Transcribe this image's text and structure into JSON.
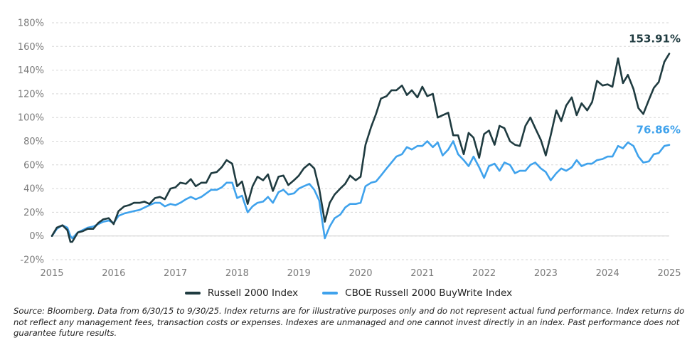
{
  "chart_data": {
    "type": "line",
    "title": "",
    "xlabel": "",
    "ylabel": "",
    "ylim": [
      -20,
      180
    ],
    "xlim": [
      2015.0,
      2025.0
    ],
    "yticks": [
      -20,
      0,
      20,
      40,
      60,
      80,
      100,
      120,
      140,
      160,
      180
    ],
    "ytick_labels": [
      "-20%",
      "0%",
      "20%",
      "40%",
      "60%",
      "80%",
      "100%",
      "120%",
      "140%",
      "160%",
      "180%"
    ],
    "xtick_labels": [
      "2015",
      "2016",
      "2017",
      "2018",
      "2019",
      "2020",
      "2021",
      "2022",
      "2023",
      "2024",
      "2025"
    ],
    "grid": "horizontal dashed",
    "legend_position": "bottom-center",
    "series": [
      {
        "name": "Russell 2000 Index",
        "color": "#1f3b40",
        "end_label": "153.91%",
        "x": [
          2015.0,
          2015.08,
          2015.17,
          2015.25,
          2015.3,
          2015.33,
          2015.42,
          2015.5,
          2015.58,
          2015.67,
          2015.75,
          2015.83,
          2015.92,
          2016.0,
          2016.08,
          2016.17,
          2016.25,
          2016.33,
          2016.42,
          2016.5,
          2016.58,
          2016.67,
          2016.75,
          2016.83,
          2016.92,
          2017.0,
          2017.08,
          2017.17,
          2017.25,
          2017.33,
          2017.42,
          2017.5,
          2017.58,
          2017.67,
          2017.75,
          2017.83,
          2017.92,
          2018.0,
          2018.08,
          2018.17,
          2018.25,
          2018.33,
          2018.42,
          2018.5,
          2018.58,
          2018.67,
          2018.75,
          2018.83,
          2018.92,
          2019.0,
          2019.08,
          2019.17,
          2019.25,
          2019.33,
          2019.42,
          2019.5,
          2019.58,
          2019.67,
          2019.75,
          2019.83,
          2019.92,
          2020.0,
          2020.08,
          2020.17,
          2020.25,
          2020.33,
          2020.42,
          2020.5,
          2020.58,
          2020.67,
          2020.75,
          2020.83,
          2020.92,
          2021.0,
          2021.08,
          2021.17,
          2021.25,
          2021.33,
          2021.42,
          2021.5,
          2021.58,
          2021.67,
          2021.75,
          2021.83,
          2021.92,
          2022.0,
          2022.08,
          2022.17,
          2022.25,
          2022.33,
          2022.42,
          2022.5,
          2022.58,
          2022.67,
          2022.75,
          2022.83,
          2022.92,
          2023.0,
          2023.08,
          2023.17,
          2023.25,
          2023.33,
          2023.42,
          2023.5,
          2023.58,
          2023.67,
          2023.75,
          2023.83,
          2023.92,
          2024.0,
          2024.08,
          2024.17,
          2024.25,
          2024.33,
          2024.42,
          2024.5,
          2024.58,
          2024.67,
          2024.75,
          2024.83,
          2024.92,
          2025.0
        ],
        "y": [
          0,
          7,
          9,
          5,
          -5,
          -5,
          3,
          4,
          6,
          6,
          11,
          14,
          15,
          10,
          21,
          25,
          26,
          28,
          28,
          29,
          27,
          32,
          33,
          31,
          40,
          41,
          45,
          44,
          48,
          42,
          45,
          45,
          53,
          54,
          58,
          64,
          61,
          42,
          46,
          27,
          42,
          50,
          47,
          52,
          38,
          50,
          51,
          43,
          47,
          51,
          57,
          61,
          57,
          40,
          12,
          28,
          35,
          40,
          44,
          51,
          47,
          50,
          77,
          92,
          103,
          116,
          118,
          123,
          123,
          127,
          119,
          123,
          117,
          126,
          118,
          120,
          100,
          102,
          104,
          85,
          85,
          69,
          87,
          83,
          66,
          86,
          89,
          77,
          93,
          91,
          80,
          77,
          76,
          93,
          100,
          91,
          81,
          68,
          85,
          106,
          97,
          110,
          117,
          102,
          112,
          106,
          113,
          131,
          127,
          128,
          126,
          150,
          129,
          136,
          124,
          108,
          103,
          115,
          125,
          130,
          147,
          153.91
        ]
      },
      {
        "name": "CBOE Russell 2000 BuyWrite Index",
        "color": "#3fa2ec",
        "end_label": "76.86%",
        "x": [
          2015.0,
          2015.08,
          2015.17,
          2015.25,
          2015.3,
          2015.33,
          2015.42,
          2015.5,
          2015.58,
          2015.67,
          2015.75,
          2015.83,
          2015.92,
          2016.0,
          2016.08,
          2016.17,
          2016.25,
          2016.33,
          2016.42,
          2016.5,
          2016.58,
          2016.67,
          2016.75,
          2016.83,
          2016.92,
          2017.0,
          2017.08,
          2017.17,
          2017.25,
          2017.33,
          2017.42,
          2017.5,
          2017.58,
          2017.67,
          2017.75,
          2017.83,
          2017.92,
          2018.0,
          2018.08,
          2018.17,
          2018.25,
          2018.33,
          2018.42,
          2018.5,
          2018.58,
          2018.67,
          2018.75,
          2018.83,
          2018.92,
          2019.0,
          2019.08,
          2019.17,
          2019.25,
          2019.33,
          2019.42,
          2019.5,
          2019.58,
          2019.67,
          2019.75,
          2019.83,
          2019.92,
          2020.0,
          2020.08,
          2020.17,
          2020.25,
          2020.33,
          2020.42,
          2020.5,
          2020.58,
          2020.67,
          2020.75,
          2020.83,
          2020.92,
          2021.0,
          2021.08,
          2021.17,
          2021.25,
          2021.33,
          2021.42,
          2021.5,
          2021.58,
          2021.67,
          2021.75,
          2021.83,
          2021.92,
          2022.0,
          2022.08,
          2022.17,
          2022.25,
          2022.33,
          2022.42,
          2022.5,
          2022.58,
          2022.67,
          2022.75,
          2022.83,
          2022.92,
          2023.0,
          2023.08,
          2023.17,
          2023.25,
          2023.33,
          2023.42,
          2023.5,
          2023.58,
          2023.67,
          2023.75,
          2023.83,
          2023.92,
          2024.0,
          2024.08,
          2024.17,
          2024.25,
          2024.33,
          2024.42,
          2024.5,
          2024.58,
          2024.67,
          2024.75,
          2024.83,
          2024.92,
          2025.0
        ],
        "y": [
          0,
          6,
          9,
          7,
          0,
          -2,
          3,
          5,
          7,
          8,
          10,
          12,
          13,
          11,
          17,
          19,
          20,
          21,
          22,
          24,
          26,
          28,
          28,
          25,
          27,
          26,
          28,
          31,
          33,
          31,
          33,
          36,
          39,
          39,
          41,
          45,
          45,
          32,
          34,
          20,
          25,
          28,
          29,
          33,
          28,
          37,
          39,
          35,
          36,
          40,
          42,
          44,
          39,
          30,
          -2,
          8,
          15,
          18,
          24,
          27,
          27,
          28,
          42,
          45,
          46,
          51,
          57,
          62,
          67,
          69,
          75,
          73,
          76,
          76,
          80,
          75,
          79,
          68,
          73,
          80,
          69,
          64,
          59,
          67,
          58,
          49,
          59,
          61,
          55,
          62,
          60,
          53,
          55,
          55,
          60,
          62,
          57,
          54,
          47,
          53,
          57,
          55,
          58,
          64,
          59,
          61,
          61,
          64,
          65,
          67,
          67,
          76,
          74,
          79,
          76,
          67,
          62,
          63,
          69,
          70,
          76,
          76.86
        ]
      }
    ]
  },
  "source_note": "Source: Bloomberg. Data from 6/30/15 to 9/30/25. Index returns are for illustrative purposes only and do not represent actual fund performance. Index returns do not reflect any management fees, transaction costs or expenses. Indexes are unmanaged and one cannot invest directly in an index. Past performance does not guarantee future results."
}
